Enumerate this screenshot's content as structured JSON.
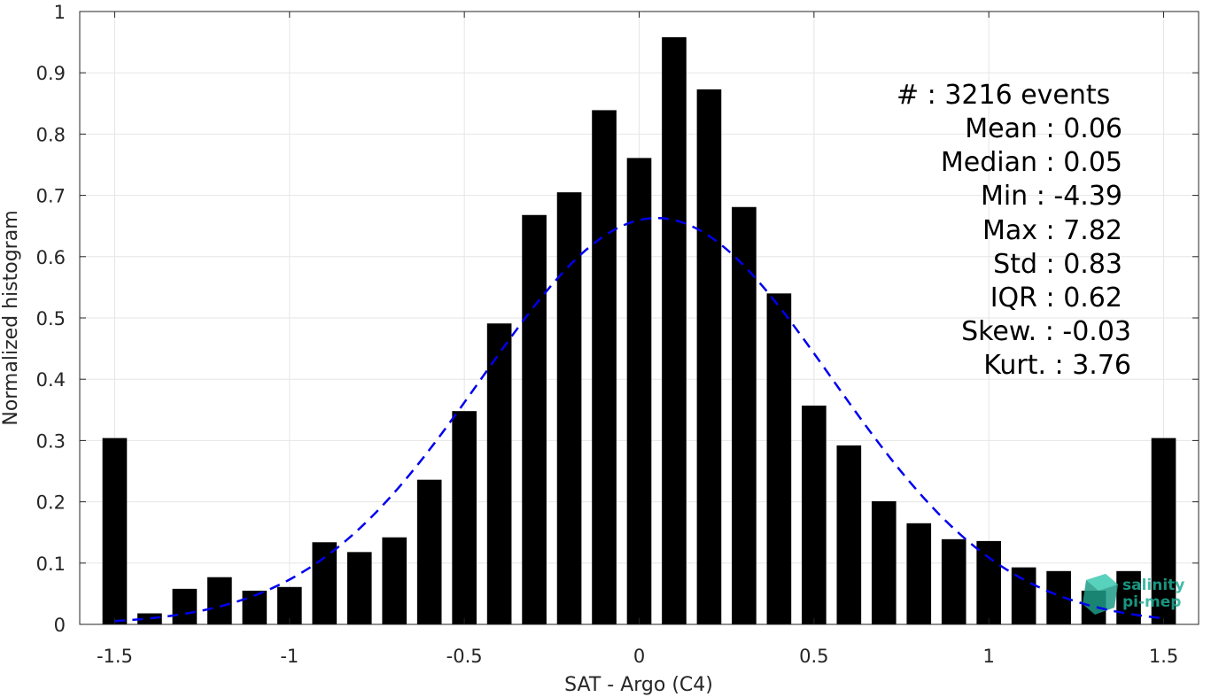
{
  "chart_data": {
    "type": "bar",
    "xlabel": "SAT - Argo (C4)",
    "ylabel": "Normalized histogram",
    "xlim": [
      -1.6,
      1.6
    ],
    "ylim": [
      0,
      1
    ],
    "grid": true,
    "xticks": [
      -1.5,
      -1,
      -0.5,
      0,
      0.5,
      1,
      1.5
    ],
    "xtick_labels": [
      "-1.5",
      "-1",
      "-0.5",
      "0",
      "0.5",
      "1",
      "1.5"
    ],
    "yticks": [
      0,
      0.1,
      0.2,
      0.3,
      0.4,
      0.5,
      0.6,
      0.7,
      0.8,
      0.9,
      1
    ],
    "ytick_labels": [
      "0",
      "0.1",
      "0.2",
      "0.3",
      "0.4",
      "0.5",
      "0.6",
      "0.7",
      "0.8",
      "0.9",
      "1"
    ],
    "bar_color": "#000000",
    "bar_width": 0.07,
    "x": [
      -1.5,
      -1.4,
      -1.3,
      -1.2,
      -1.1,
      -1.0,
      -0.9,
      -0.8,
      -0.7,
      -0.6,
      -0.5,
      -0.4,
      -0.3,
      -0.2,
      -0.1,
      0.0,
      0.1,
      0.2,
      0.3,
      0.4,
      0.5,
      0.6,
      0.7,
      0.8,
      0.9,
      1.0,
      1.1,
      1.2,
      1.3,
      1.4,
      1.5
    ],
    "values": [
      0.304,
      0.018,
      0.058,
      0.077,
      0.055,
      0.061,
      0.134,
      0.118,
      0.142,
      0.236,
      0.348,
      0.491,
      0.668,
      0.705,
      0.839,
      0.761,
      0.958,
      0.873,
      0.681,
      0.54,
      0.357,
      0.292,
      0.201,
      0.165,
      0.139,
      0.136,
      0.093,
      0.087,
      0.055,
      0.087,
      0.304
    ],
    "fit_curve": {
      "style": "dashed",
      "color": "#0000ee",
      "mean": 0.05,
      "std": 0.5,
      "peak": 0.663,
      "x_range": [
        -1.5,
        1.5
      ]
    }
  },
  "stats_lines": [
    "#  : 3216 events",
    "Mean : 0.06",
    "Median : 0.05",
    "Min : -4.39",
    "Max : 7.82",
    "Std : 0.83",
    "IQR : 0.62",
    "Skew. : -0.03",
    "Kurt. : 3.76"
  ],
  "logo": {
    "line1": "salinity",
    "line2": "pi-mep",
    "color": "#1fae96"
  }
}
